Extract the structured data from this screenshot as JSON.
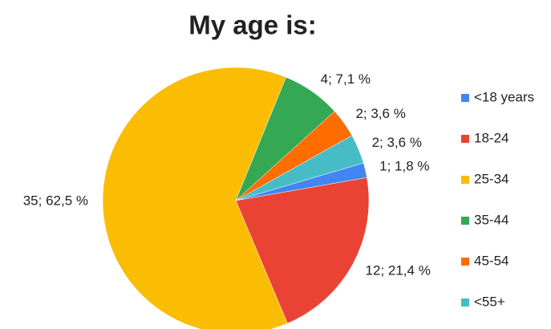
{
  "chart_data": {
    "type": "pie",
    "title": "My age is:",
    "categories": [
      "<18 years",
      "18-24",
      "25-34",
      "35-44",
      "45-54",
      "<55+"
    ],
    "values": [
      1,
      12,
      35,
      4,
      2,
      2
    ],
    "value_labels": [
      "1; 1,8 %",
      "12; 21,4 %",
      "35; 62,5 %",
      "4; 7,1 %",
      "2; 3,6 %",
      "2; 3,6 %"
    ],
    "colors": [
      "#4285f4",
      "#ea4335",
      "#fbbc04",
      "#34a853",
      "#ff6d01",
      "#46bdc6"
    ],
    "legend": "right"
  }
}
